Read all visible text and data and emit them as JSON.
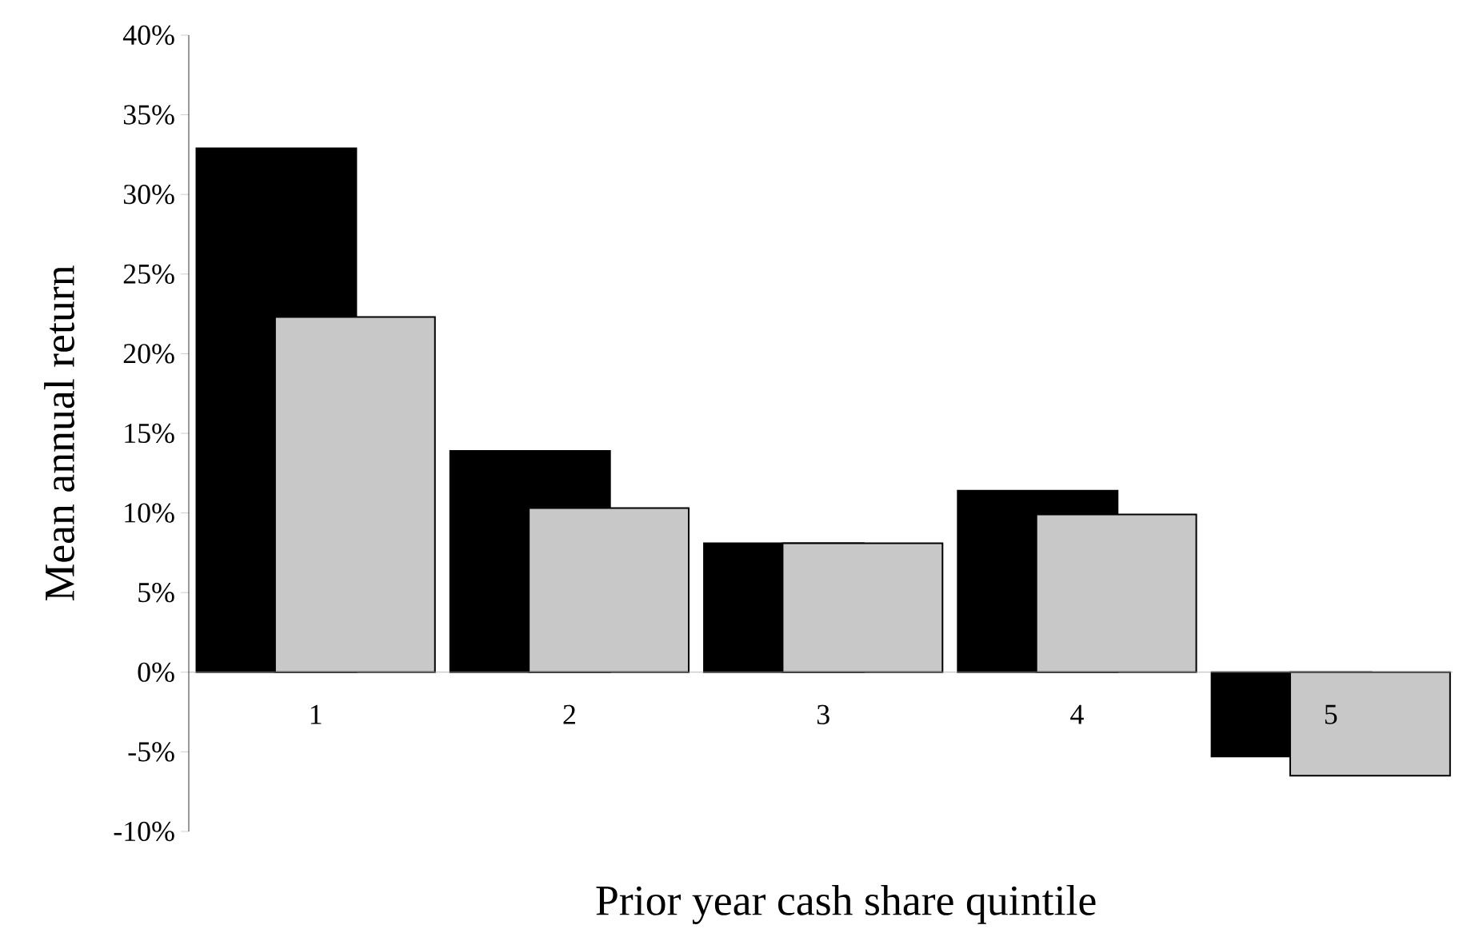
{
  "chart_data": {
    "type": "bar",
    "xlabel": "Prior year cash share quintile",
    "ylabel": "Mean annual return",
    "categories": [
      "1",
      "2",
      "3",
      "4",
      "5"
    ],
    "series": [
      {
        "color": "#000000",
        "values": [
          32.9,
          13.9,
          8.1,
          11.4,
          -5.3
        ]
      },
      {
        "color": "#c8c8c8",
        "values": [
          22.3,
          10.3,
          8.1,
          9.9,
          -6.5
        ]
      }
    ],
    "ylim": [
      -10,
      40
    ],
    "yticks": [
      {
        "value": -10,
        "label": "-10%"
      },
      {
        "value": -5,
        "label": "-5%"
      },
      {
        "value": 0,
        "label": "0%"
      },
      {
        "value": 5,
        "label": "5%"
      },
      {
        "value": 10,
        "label": "10%"
      },
      {
        "value": 15,
        "label": "15%"
      },
      {
        "value": 20,
        "label": "20%"
      },
      {
        "value": 25,
        "label": "25%"
      },
      {
        "value": 30,
        "label": "30%"
      },
      {
        "value": 35,
        "label": "35%"
      },
      {
        "value": 40,
        "label": "40%"
      }
    ],
    "grid": false
  }
}
